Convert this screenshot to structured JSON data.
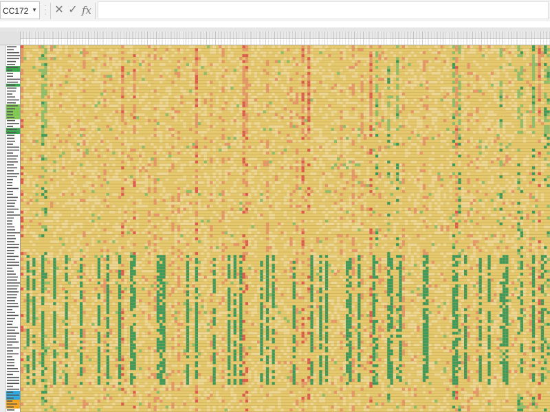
{
  "formula_bar": {
    "name_box_value": "CC172",
    "cancel_icon": "x-icon",
    "enter_icon": "check-icon",
    "function_icon": "fx-icon",
    "cancel_glyph": "✕",
    "enter_glyph": "✓",
    "function_glyph": "fx",
    "formula_value": ""
  },
  "colors": {
    "neutral": "#e6c86e",
    "neutral_light": "#eed795",
    "red": "#e05a4f",
    "red_light": "#e8976b",
    "green": "#3d9a5c",
    "green_light": "#8fbf6d",
    "label_green": "#37a84a",
    "label_lightgreen": "#7ec850",
    "label_blue": "#29a8e0",
    "label_orange": "#f5a21b"
  }
}
